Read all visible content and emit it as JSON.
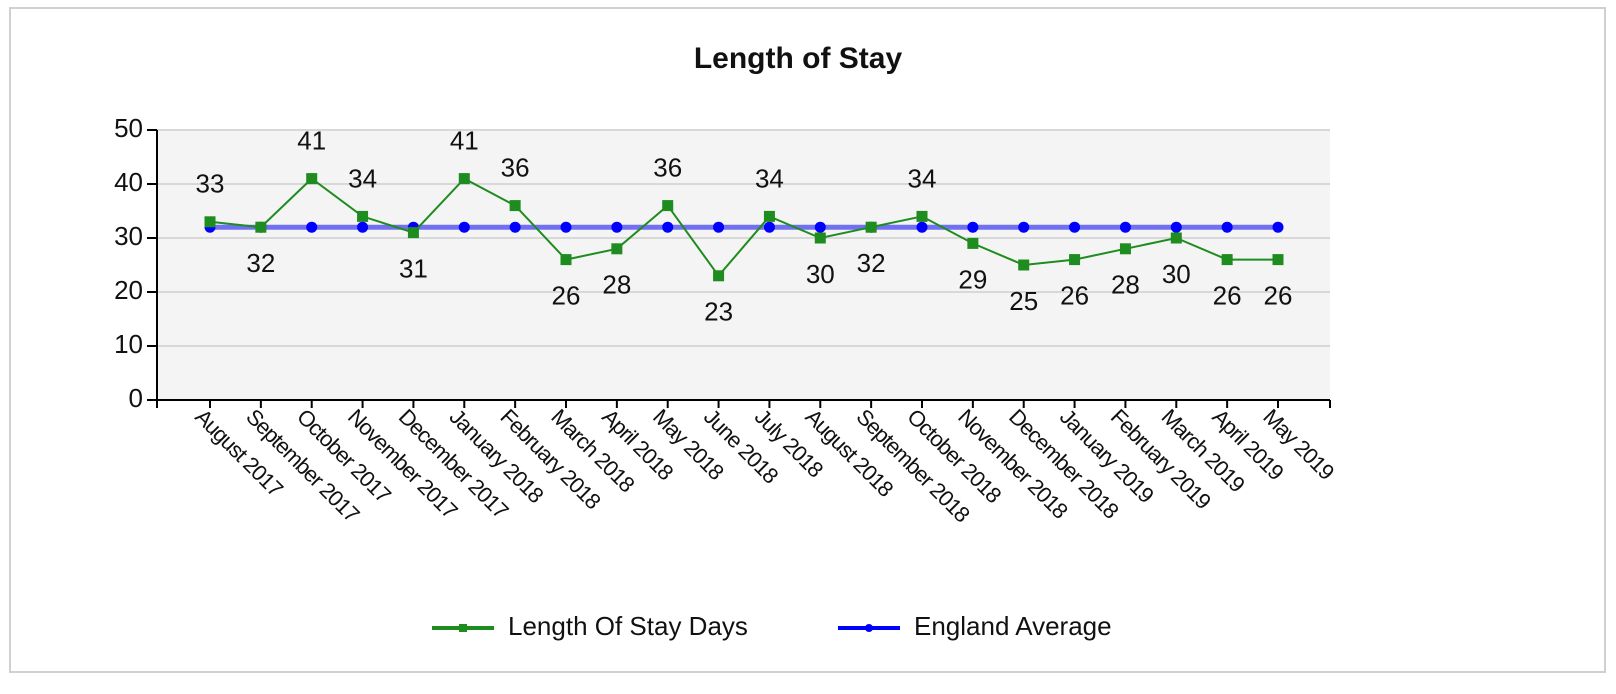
{
  "chart_data": {
    "type": "line",
    "title": "Length of Stay",
    "categories": [
      "August 2017",
      "September 2017",
      "October 2017",
      "November 2017",
      "December 2017",
      "January 2018",
      "February 2018",
      "March 2018",
      "April 2018",
      "May 2018",
      "June 2018",
      "July 2018",
      "August 2018",
      "September 2018",
      "October 2018",
      "November 2018",
      "December 2018",
      "January 2019",
      "February 2019",
      "March 2019",
      "April 2019",
      "May 2019"
    ],
    "series": [
      {
        "name": "Length Of Stay Days",
        "color": "#1e8c1e",
        "values": [
          33,
          32,
          41,
          34,
          31,
          41,
          36,
          26,
          28,
          36,
          23,
          34,
          30,
          32,
          34,
          29,
          25,
          26,
          28,
          30,
          26,
          26
        ]
      },
      {
        "name": "England Average",
        "color": "#0000ff",
        "values": [
          32,
          32,
          32,
          32,
          32,
          32,
          32,
          32,
          32,
          32,
          32,
          32,
          32,
          32,
          32,
          32,
          32,
          32,
          32,
          32,
          32,
          32
        ]
      }
    ],
    "ylim": [
      0,
      50
    ],
    "yticks": [
      0,
      10,
      20,
      30,
      40,
      50
    ],
    "grid": true,
    "legend": "bottom"
  }
}
